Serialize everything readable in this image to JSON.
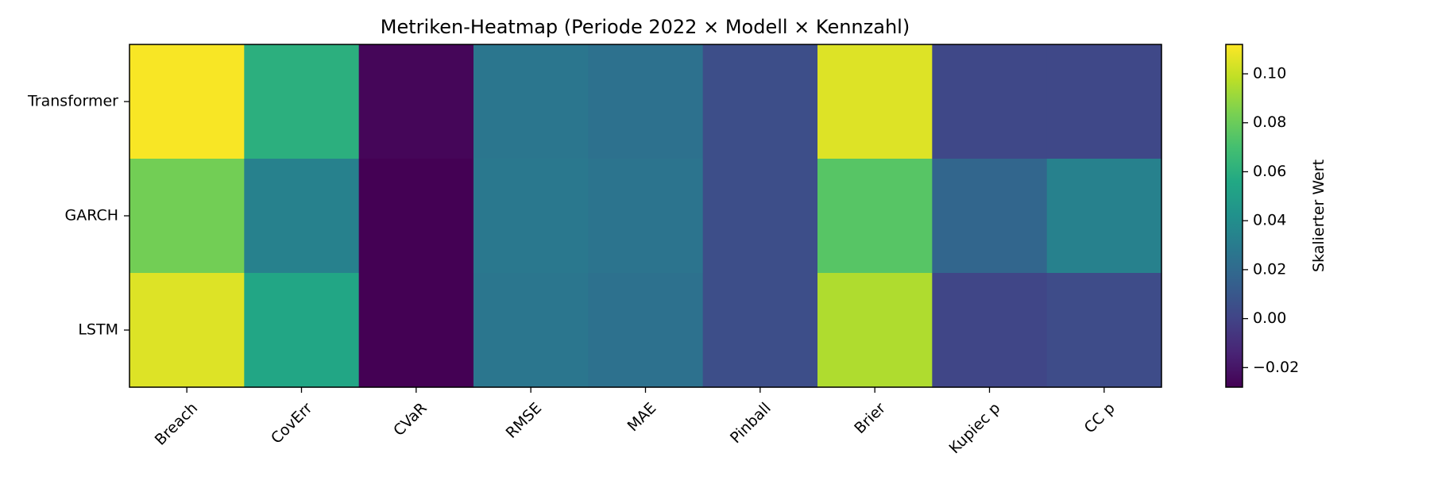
{
  "chart_data": {
    "type": "heatmap",
    "title": "Metriken-Heatmap (Periode 2022 × Modell × Kennzahl)",
    "xlabel": "",
    "ylabel": "",
    "x_categories": [
      "Breach",
      "CovErr",
      "CVaR",
      "RMSE",
      "MAE",
      "Pinball",
      "Brier",
      "Kupiec p",
      "CC p"
    ],
    "y_categories": [
      "Transformer",
      "GARCH",
      "LSTM"
    ],
    "values": [
      [
        0.111,
        0.06,
        -0.026,
        0.027,
        0.024,
        0.005,
        0.105,
        0.002,
        0.002
      ],
      [
        0.082,
        0.033,
        -0.028,
        0.028,
        0.026,
        0.005,
        0.075,
        0.018,
        0.033
      ],
      [
        0.105,
        0.055,
        -0.028,
        0.027,
        0.024,
        0.005,
        0.095,
        0.001,
        0.004
      ]
    ],
    "colormap": "viridis",
    "vmin": -0.028,
    "vmax": 0.112,
    "colorbar": {
      "label": "Skalierter Wert",
      "ticks": [
        -0.02,
        0.0,
        0.02,
        0.04,
        0.06,
        0.08,
        0.1
      ],
      "tick_labels": [
        "−0.02",
        "0.00",
        "0.02",
        "0.04",
        "0.06",
        "0.08",
        "0.10"
      ]
    },
    "grid": false
  }
}
